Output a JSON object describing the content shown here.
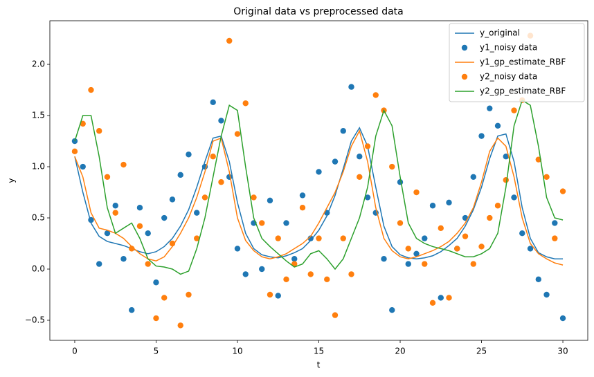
{
  "chart_data": {
    "type": "line",
    "title": "Original data vs preprocessed data",
    "xlabel": "t",
    "ylabel": "y",
    "xlim": [
      -1.53,
      31.53
    ],
    "ylim": [
      -0.696,
      2.426
    ],
    "xticks": [
      0,
      5,
      10,
      15,
      20,
      25,
      30
    ],
    "yticks": [
      {
        "value": -0.5,
        "label": "−0.5"
      },
      {
        "value": 0,
        "label": "0.0"
      },
      {
        "value": 0.5,
        "label": "0.5"
      },
      {
        "value": 1,
        "label": "1.0"
      },
      {
        "value": 1.5,
        "label": "1.5"
      },
      {
        "value": 2,
        "label": "2.0"
      }
    ],
    "legend": "upper right",
    "x": [
      0,
      0.5,
      1,
      1.5,
      2,
      2.5,
      3,
      3.5,
      4,
      4.5,
      5,
      5.5,
      6,
      6.5,
      7,
      7.5,
      8,
      8.5,
      9,
      9.5,
      10,
      10.5,
      11,
      11.5,
      12,
      12.5,
      13,
      13.5,
      14,
      14.5,
      15,
      15.5,
      16,
      16.5,
      17,
      17.5,
      18,
      18.5,
      19,
      19.5,
      20,
      20.5,
      21,
      21.5,
      22,
      22.5,
      23,
      23.5,
      24,
      24.5,
      25,
      25.5,
      26,
      26.5,
      27,
      27.5,
      28,
      28.5,
      29,
      29.5,
      30
    ],
    "series": [
      {
        "name": "y_original",
        "type": "line",
        "color": "#1f77b4",
        "values": [
          1.1,
          0.75,
          0.45,
          0.32,
          0.27,
          0.25,
          0.23,
          0.2,
          0.17,
          0.15,
          0.17,
          0.22,
          0.3,
          0.42,
          0.58,
          0.8,
          1.05,
          1.28,
          1.3,
          1.05,
          0.65,
          0.35,
          0.2,
          0.14,
          0.12,
          0.11,
          0.13,
          0.16,
          0.2,
          0.28,
          0.38,
          0.52,
          0.72,
          0.98,
          1.25,
          1.38,
          1.2,
          0.8,
          0.42,
          0.22,
          0.14,
          0.11,
          0.1,
          0.11,
          0.13,
          0.17,
          0.23,
          0.3,
          0.42,
          0.58,
          0.8,
          1.08,
          1.3,
          1.32,
          1.05,
          0.6,
          0.3,
          0.16,
          0.12,
          0.1,
          0.1
        ]
      },
      {
        "name": "y1_noisy data",
        "type": "scatter",
        "color": "#1f77b4",
        "x": [
          0,
          0.5,
          1,
          1.5,
          2,
          2.5,
          3,
          3.5,
          4,
          4.5,
          5,
          5.5,
          6,
          6.5,
          7,
          7.5,
          8,
          8.5,
          9,
          9.5,
          10,
          10.5,
          11,
          11.5,
          12,
          12.5,
          13,
          13.5,
          14,
          14.5,
          15,
          15.5,
          16,
          16.5,
          17,
          17.5,
          18,
          18.5,
          19,
          19.5,
          20,
          20.5,
          21,
          21.5,
          22,
          22.5,
          23,
          23.5,
          24,
          24.5,
          25,
          25.5,
          26,
          26.5,
          27,
          27.5,
          28,
          28.5,
          29,
          29.5,
          30
        ],
        "values": [
          1.25,
          1.0,
          0.48,
          0.05,
          0.35,
          0.62,
          0.1,
          -0.4,
          0.6,
          0.35,
          -0.13,
          0.5,
          0.68,
          0.92,
          1.12,
          0.55,
          1.0,
          1.63,
          1.45,
          0.9,
          0.2,
          -0.05,
          0.45,
          0.0,
          0.67,
          -0.26,
          0.45,
          0.1,
          0.72,
          0.3,
          0.95,
          0.55,
          1.05,
          1.35,
          1.78,
          1.1,
          0.7,
          0.55,
          0.1,
          -0.4,
          0.85,
          0.05,
          0.15,
          0.3,
          0.62,
          -0.28,
          0.65,
          0.2,
          0.5,
          0.9,
          1.3,
          1.57,
          1.4,
          1.1,
          0.7,
          0.35,
          0.2,
          -0.1,
          -0.25,
          0.45,
          -0.48
        ]
      },
      {
        "name": "y1_gp_estimate_RBF",
        "type": "line",
        "color": "#ff7f0e",
        "values": [
          1.1,
          0.9,
          0.55,
          0.4,
          0.38,
          0.35,
          0.3,
          0.22,
          0.15,
          0.1,
          0.08,
          0.12,
          0.22,
          0.35,
          0.5,
          0.7,
          0.95,
          1.25,
          1.28,
          0.95,
          0.5,
          0.28,
          0.18,
          0.12,
          0.1,
          0.12,
          0.15,
          0.2,
          0.25,
          0.32,
          0.45,
          0.6,
          0.75,
          0.95,
          1.2,
          1.35,
          1.05,
          0.6,
          0.3,
          0.18,
          0.12,
          0.1,
          0.12,
          0.15,
          0.18,
          0.22,
          0.27,
          0.35,
          0.45,
          0.6,
          0.85,
          1.15,
          1.28,
          1.2,
          0.9,
          0.5,
          0.25,
          0.15,
          0.1,
          0.06,
          0.04
        ]
      },
      {
        "name": "y2_noisy data",
        "type": "scatter",
        "color": "#ff7f0e",
        "x": [
          0,
          0.5,
          1,
          1.5,
          2,
          2.5,
          3,
          3.5,
          4,
          4.5,
          5,
          5.5,
          6,
          6.5,
          7,
          7.5,
          8,
          8.5,
          9,
          9.5,
          10,
          10.5,
          11,
          11.5,
          12,
          12.5,
          13,
          13.5,
          14,
          14.5,
          15,
          15.5,
          16,
          16.5,
          17,
          17.5,
          18,
          18.5,
          19,
          19.5,
          20,
          20.5,
          21,
          21.5,
          22,
          22.5,
          23,
          23.5,
          24,
          24.5,
          25,
          25.5,
          26,
          26.5,
          27,
          27.5,
          28,
          28.5,
          29,
          29.5,
          30
        ],
        "values": [
          1.15,
          1.42,
          1.75,
          1.35,
          0.9,
          0.55,
          1.02,
          0.2,
          0.42,
          0.05,
          -0.48,
          -0.28,
          0.25,
          -0.55,
          -0.25,
          0.3,
          0.7,
          1.1,
          0.85,
          2.23,
          1.32,
          1.62,
          0.7,
          0.45,
          -0.25,
          0.3,
          -0.1,
          0.05,
          0.6,
          -0.05,
          0.3,
          -0.1,
          -0.45,
          0.3,
          -0.05,
          0.9,
          1.2,
          1.7,
          1.55,
          1.0,
          0.45,
          0.2,
          0.75,
          0.05,
          -0.33,
          0.4,
          -0.28,
          0.2,
          0.32,
          0.05,
          0.22,
          0.5,
          0.62,
          0.87,
          1.55,
          1.65,
          2.28,
          1.07,
          0.9,
          0.3,
          0.76
        ]
      },
      {
        "name": "y2_gp_estimate_RBF",
        "type": "line",
        "color": "#2ca02c",
        "values": [
          1.25,
          1.5,
          1.5,
          1.1,
          0.6,
          0.35,
          0.4,
          0.45,
          0.3,
          0.1,
          0.03,
          0.02,
          0.0,
          -0.05,
          -0.02,
          0.2,
          0.5,
          0.9,
          1.3,
          1.6,
          1.55,
          1.0,
          0.5,
          0.3,
          0.22,
          0.15,
          0.08,
          0.02,
          0.05,
          0.15,
          0.18,
          0.1,
          0.0,
          0.1,
          0.3,
          0.5,
          0.8,
          1.3,
          1.55,
          1.4,
          0.9,
          0.45,
          0.3,
          0.25,
          0.22,
          0.2,
          0.18,
          0.15,
          0.12,
          0.12,
          0.15,
          0.2,
          0.35,
          0.8,
          1.4,
          1.65,
          1.6,
          1.2,
          0.7,
          0.5,
          0.48
        ]
      }
    ]
  }
}
